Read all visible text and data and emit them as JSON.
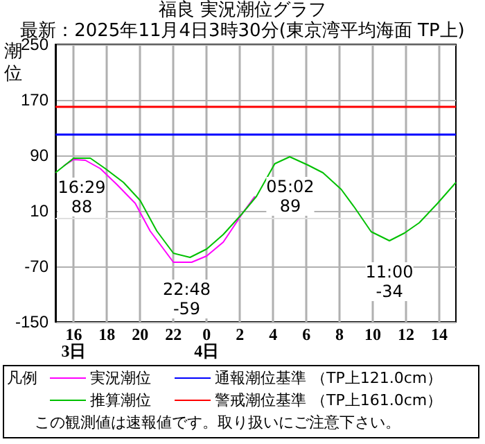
{
  "chart_data": {
    "type": "line",
    "title": "福良 実況潮位グラフ",
    "subtitle": "最新：2025年11月4日3時30分(東京湾平均海面 TP上)",
    "ylabel": "潮位",
    "legend_title": "凡例",
    "legend": "bottom",
    "grid": true,
    "marker": "none",
    "line_style": "solid",
    "xlim": [
      "2025-11-03T14:54",
      "2025-11-04T15:00"
    ],
    "xticks": [
      {
        "value": "2025-11-03T16:00",
        "label": "16\n3日"
      },
      {
        "value": "2025-11-03T18:00",
        "label": "18"
      },
      {
        "value": "2025-11-03T20:00",
        "label": "20"
      },
      {
        "value": "2025-11-03T22:00",
        "label": "22"
      },
      {
        "value": "2025-11-04T00:00",
        "label": "0\n4日"
      },
      {
        "value": "2025-11-04T02:00",
        "label": "2"
      },
      {
        "value": "2025-11-04T04:00",
        "label": "4"
      },
      {
        "value": "2025-11-04T06:00",
        "label": "6"
      },
      {
        "value": "2025-11-04T08:00",
        "label": "8"
      },
      {
        "value": "2025-11-04T10:00",
        "label": "10"
      },
      {
        "value": "2025-11-04T12:00",
        "label": "12"
      },
      {
        "value": "2025-11-04T14:00",
        "label": "14"
      }
    ],
    "ylim": [
      -150,
      250
    ],
    "yticks": [
      -150,
      -70,
      10,
      90,
      170,
      250
    ],
    "series": [
      {
        "name": "実況潮位",
        "color": "#ff00ff",
        "x": [
          "2025-11-03T15:24",
          "2025-11-03T16:00",
          "2025-11-03T16:42",
          "2025-11-03T17:36",
          "2025-11-03T18:36",
          "2025-11-03T19:42",
          "2025-11-03T20:36",
          "2025-11-03T22:00",
          "2025-11-03T23:06",
          "2025-11-04T00:00",
          "2025-11-04T01:00",
          "2025-11-04T02:12",
          "2025-11-04T02:54"
        ],
        "values": [
          75,
          84,
          83,
          71,
          48,
          21,
          -19,
          -64,
          -64,
          -55,
          -35,
          8,
          31
        ]
      },
      {
        "name": "推算潮位",
        "color": "#00c000",
        "x": [
          "2025-11-03T14:54",
          "2025-11-03T16:00",
          "2025-11-03T17:00",
          "2025-11-03T17:54",
          "2025-11-03T19:00",
          "2025-11-03T20:00",
          "2025-11-03T21:00",
          "2025-11-03T22:00",
          "2025-11-03T23:00",
          "2025-11-04T00:00",
          "2025-11-04T01:00",
          "2025-11-04T02:06",
          "2025-11-04T03:00",
          "2025-11-04T04:06",
          "2025-11-04T05:00",
          "2025-11-04T06:06",
          "2025-11-04T07:00",
          "2025-11-04T08:06",
          "2025-11-04T08:54",
          "2025-11-04T09:54",
          "2025-11-04T11:00",
          "2025-11-04T11:54",
          "2025-11-04T12:48",
          "2025-11-04T13:54",
          "2025-11-04T15:00"
        ],
        "values": [
          65,
          86,
          86,
          71,
          51,
          25,
          -19,
          -51,
          -57,
          -45,
          -24,
          5,
          31,
          78,
          88,
          76,
          65,
          41,
          15,
          -20,
          -33,
          -22,
          -7,
          21,
          51
        ]
      }
    ],
    "ref_lines": [
      {
        "axis": "y",
        "value": 0,
        "color": "#e0e0e0"
      },
      {
        "axis": "y",
        "value": 121,
        "label": "通報潮位基準 （TP上121.0cm）",
        "color": "#0000ff"
      },
      {
        "axis": "y",
        "value": 161,
        "label": "警戒潮位基準 （TP上161.0cm）",
        "color": "#ff0000"
      }
    ],
    "annotations": [
      {
        "text": "16:29\n88",
        "x": "2025-11-03T16:29",
        "y": 88
      },
      {
        "text": "22:48\n-59",
        "x": "2025-11-03T22:48",
        "y": -59
      },
      {
        "text": "05:02\n89",
        "x": "2025-11-04T05:02",
        "y": 89
      },
      {
        "text": "11:00\n-34",
        "x": "2025-11-04T11:00",
        "y": -34
      },
      "この観測値は速報値です。取り扱いにご注意下さい。"
    ]
  }
}
